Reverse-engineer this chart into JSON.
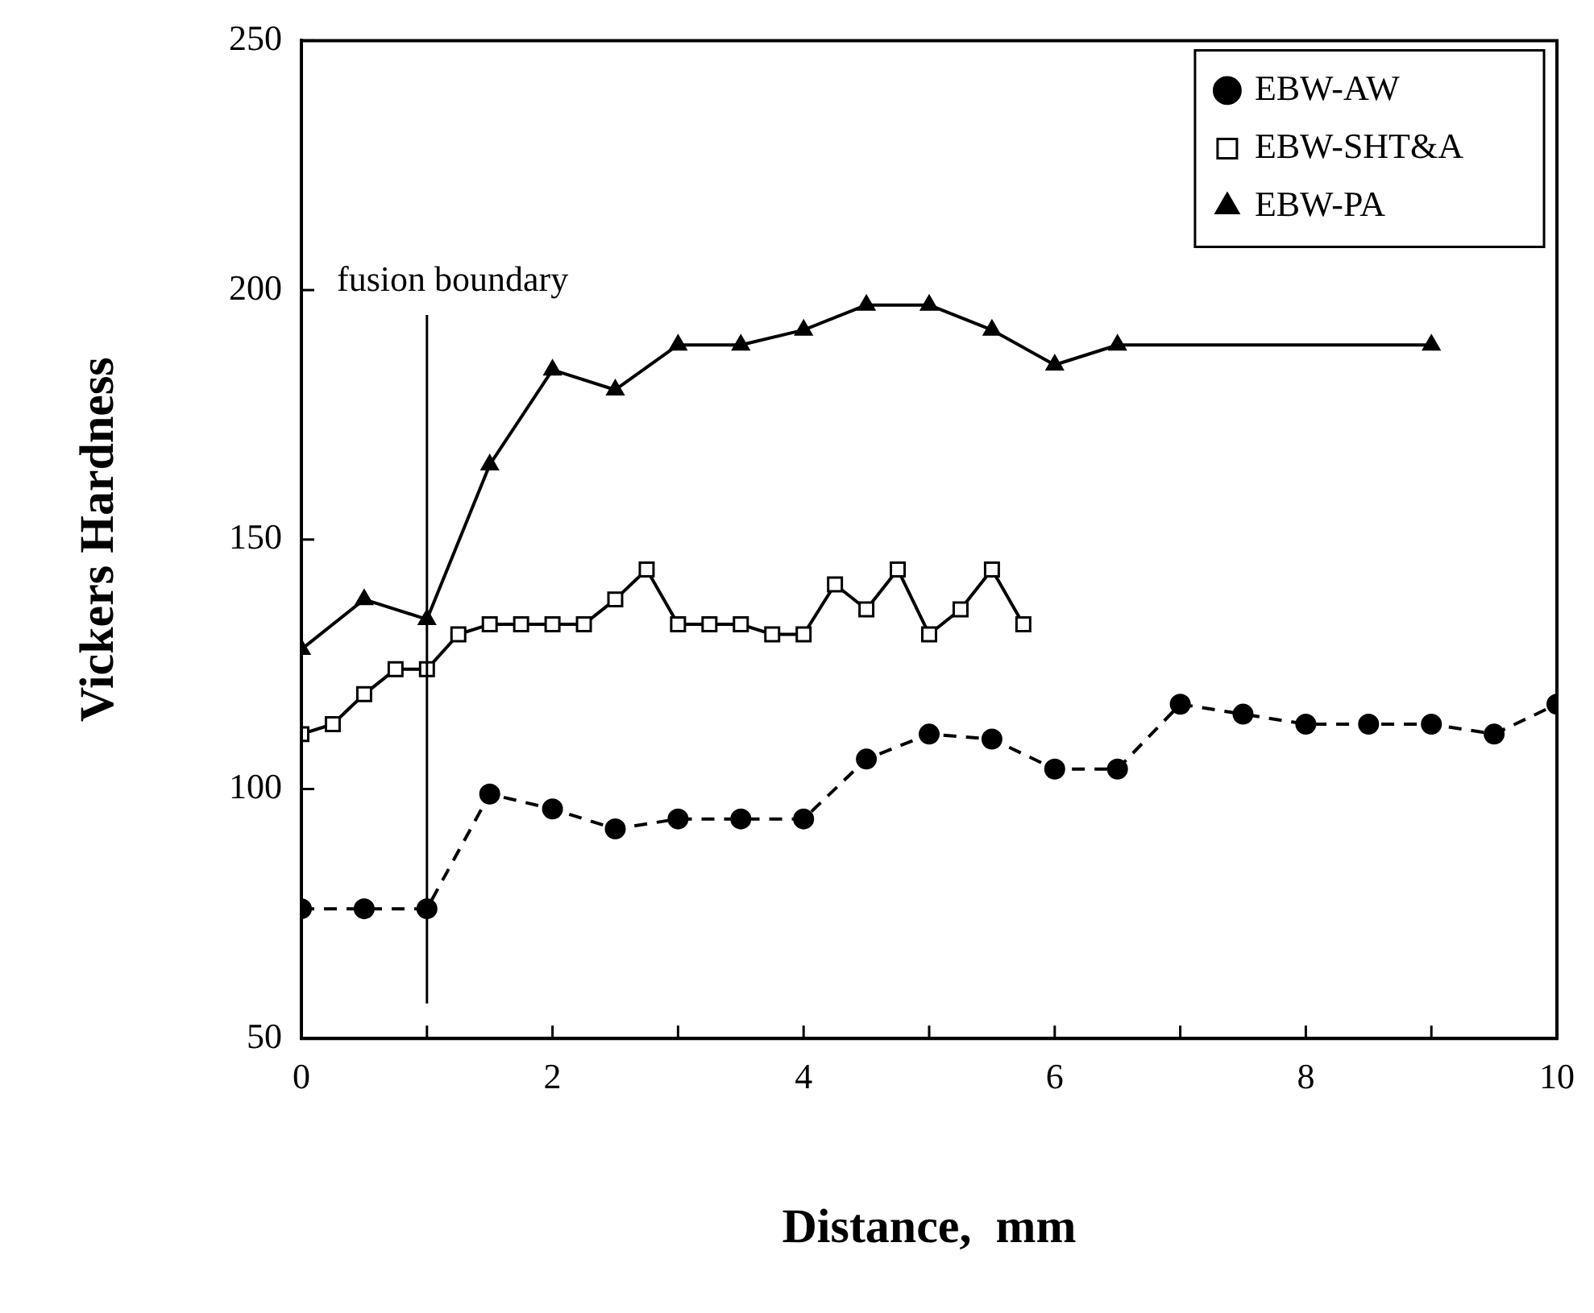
{
  "chart_data": {
    "type": "line",
    "xlabel": "Distance,  mm",
    "ylabel": "Vickers Hardness",
    "xlim": [
      0,
      10
    ],
    "xticks": [
      0,
      {
        "value": 1,
        "label": null
      },
      2,
      {
        "value": 3,
        "label": null
      },
      4,
      {
        "value": 5,
        "label": null
      },
      6,
      {
        "value": 7,
        "label": null
      },
      8,
      {
        "value": 9,
        "label": null
      },
      10
    ],
    "ylim": [
      50,
      250
    ],
    "yticks": [
      50,
      100,
      150,
      200,
      250
    ],
    "grid": false,
    "legend": "top right",
    "ref_lines": [
      {
        "axis": "x",
        "value": 1,
        "label": "fusion boundary"
      }
    ],
    "series": [
      {
        "name": "EBW-AW",
        "color": "#000000",
        "marker": "circle",
        "line_style": "dashed",
        "x": [
          0,
          0.5,
          1,
          1.5,
          2,
          2.5,
          3,
          3.5,
          4,
          4.5,
          5,
          5.5,
          6,
          6.5,
          7,
          7.5,
          8,
          8.5,
          9,
          9.5,
          10
        ],
        "values": [
          76,
          76,
          76,
          99,
          96,
          92,
          94,
          94,
          94,
          106,
          111,
          110,
          104,
          104,
          117,
          115,
          113,
          113,
          113,
          111,
          117
        ]
      },
      {
        "name": "EBW-SHT&A",
        "color": "#000000",
        "marker": "square",
        "line_style": "solid",
        "x": [
          0,
          0.25,
          0.5,
          0.75,
          1,
          1.25,
          1.5,
          1.75,
          2,
          2.25,
          2.5,
          2.75,
          3,
          3.25,
          3.5,
          3.75,
          4,
          4.25,
          4.5,
          4.75,
          5,
          5.25,
          5.5,
          5.75
        ],
        "values": [
          111,
          113,
          119,
          124,
          124,
          131,
          133,
          133,
          133,
          133,
          138,
          144,
          133,
          133,
          133,
          131,
          131,
          141,
          136,
          144,
          131,
          136,
          144,
          133
        ]
      },
      {
        "name": "EBW-PA",
        "color": "#000000",
        "marker": "triangle",
        "line_style": "solid",
        "x": [
          0,
          0.5,
          1,
          1.5,
          2,
          2.5,
          3,
          3.5,
          4,
          4.5,
          5,
          5.5,
          6,
          6.5,
          9
        ],
        "values": [
          128,
          138,
          134,
          165,
          184,
          180,
          189,
          189,
          192,
          197,
          197,
          192,
          185,
          189,
          189
        ]
      }
    ]
  }
}
